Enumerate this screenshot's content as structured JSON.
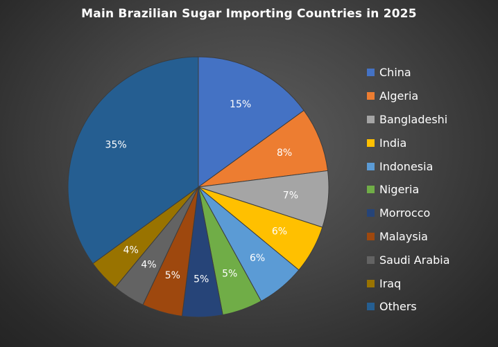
{
  "chart_data": {
    "type": "pie",
    "title": "Main Brazilian Sugar Importing Countries in 2025",
    "categories": [
      "China",
      "Algeria",
      "Bangladeshi",
      "India",
      "Indonesia",
      "Nigeria",
      "Morrocco",
      "Malaysia",
      "Saudi Arabia",
      "Iraq",
      "Others"
    ],
    "values": [
      15,
      8,
      7,
      6,
      6,
      5,
      5,
      5,
      4,
      4,
      35
    ],
    "data_labels": [
      "15%",
      "8%",
      "7%",
      "6%",
      "6%",
      "5%",
      "5%",
      "5%",
      "4%",
      "4%",
      "35%"
    ],
    "colors": [
      "#4472C4",
      "#ED7D31",
      "#A5A5A5",
      "#FFC000",
      "#5B9BD5",
      "#70AD47",
      "#264478",
      "#9E480E",
      "#636363",
      "#997300",
      "#255E91"
    ],
    "legend_position": "right"
  }
}
